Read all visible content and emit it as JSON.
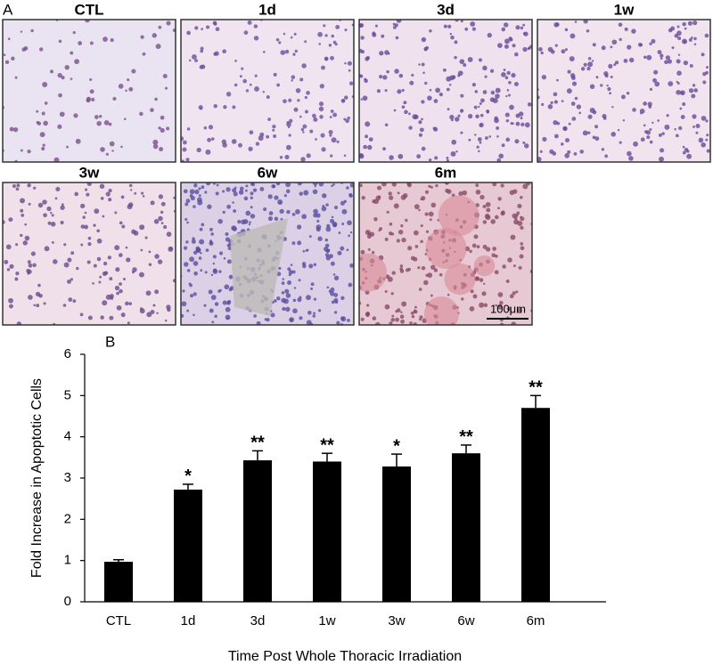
{
  "panel_a": {
    "label": "A",
    "images": [
      {
        "title": "CTL"
      },
      {
        "title": "1d"
      },
      {
        "title": "3d"
      },
      {
        "title": "1w"
      },
      {
        "title": "3w"
      },
      {
        "title": "6w"
      },
      {
        "title": "6m"
      }
    ],
    "scale_bar": "100μm"
  },
  "chart_data": {
    "type": "bar",
    "panel_label": "B",
    "x_label": "Time Post Whole Thoracic Irradiation",
    "y_label": "Fold Increase in Apoptotic Cells",
    "categories": [
      "CTL",
      "1d",
      "3d",
      "1w",
      "3w",
      "6w",
      "6m"
    ],
    "values": [
      0.97,
      2.72,
      3.43,
      3.4,
      3.28,
      3.6,
      4.7
    ],
    "errors": [
      0.05,
      0.13,
      0.23,
      0.2,
      0.3,
      0.2,
      0.3
    ],
    "annotations": [
      null,
      "*",
      "**",
      "**",
      "*",
      "**",
      "**"
    ],
    "color": "#000000",
    "ylim": [
      0,
      6
    ],
    "yticks": [
      0,
      1,
      2,
      3,
      4,
      5,
      6
    ]
  }
}
